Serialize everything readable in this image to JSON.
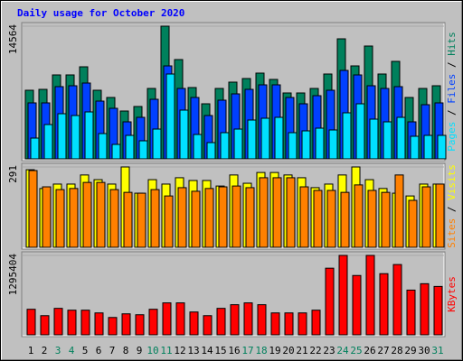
{
  "title": "Daily usage for October 2020",
  "legend_separator": "/",
  "chart_data": [
    {
      "type": "bar",
      "ylim": [
        0,
        14564
      ],
      "yticks": [
        14564
      ],
      "series": [
        {
          "name": "Hits",
          "color": "#00805c",
          "values": [
            7529,
            7628,
            9214,
            9214,
            10105,
            7529,
            6737,
            5251,
            5746,
            7727,
            14564,
            10898,
            7827,
            6043,
            7727,
            8421,
            8817,
            9412,
            8718,
            7232,
            7232,
            7727,
            9313,
            13176,
            10204,
            12384,
            9313,
            10700,
            6737,
            7727,
            8025
          ]
        },
        {
          "name": "Files",
          "color": "#0040ff",
          "values": [
            6142,
            6142,
            7926,
            8025,
            8322,
            6340,
            5548,
            4062,
            4557,
            6539,
            10204,
            7727,
            6737,
            4755,
            6440,
            7133,
            7628,
            8124,
            8124,
            6737,
            6043,
            6935,
            7529,
            9709,
            9213,
            8025,
            7727,
            7926,
            4062,
            5944,
            6142
          ]
        },
        {
          "name": "Pages",
          "color": "#00e0ff",
          "values": [
            2279,
            3765,
            4954,
            4755,
            5152,
            2774,
            1585,
            2576,
            1981,
            3269,
            9313,
            5350,
            2675,
            1783,
            2873,
            3269,
            4260,
            4458,
            4557,
            2873,
            3071,
            3368,
            3170,
            5053,
            6043,
            4359,
            4062,
            4557,
            2477,
            2576,
            2576
          ]
        }
      ]
    },
    {
      "type": "bar",
      "ylim": [
        0,
        291
      ],
      "yticks": [
        291
      ],
      "series": [
        {
          "name": "Visits",
          "color": "#ffff00",
          "values": [
            281,
            213,
            229,
            229,
            262,
            245,
            229,
            291,
            196,
            245,
            229,
            252,
            242,
            242,
            222,
            262,
            232,
            271,
            271,
            262,
            252,
            216,
            229,
            262,
            291,
            245,
            213,
            196,
            186,
            229,
            229
          ]
        },
        {
          "name": "Sites",
          "color": "#ff8000",
          "values": [
            278,
            219,
            209,
            213,
            235,
            235,
            209,
            199,
            196,
            209,
            186,
            216,
            203,
            213,
            219,
            222,
            216,
            252,
            252,
            252,
            219,
            206,
            206,
            199,
            226,
            206,
            199,
            262,
            170,
            219,
            229
          ]
        }
      ]
    },
    {
      "type": "bar",
      "ylim": [
        0,
        1295404
      ],
      "yticks": [
        1295404
      ],
      "categories": [
        "1",
        "2",
        "3",
        "4",
        "5",
        "6",
        "7",
        "8",
        "9",
        "10",
        "11",
        "12",
        "13",
        "14",
        "15",
        "16",
        "17",
        "18",
        "19",
        "20",
        "21",
        "22",
        "23",
        "24",
        "25",
        "26",
        "27",
        "28",
        "29",
        "30",
        "31"
      ],
      "category_colors": [
        "#000000",
        "#000000",
        "#00805c",
        "#00805c",
        "#000000",
        "#000000",
        "#000000",
        "#000000",
        "#000000",
        "#00805c",
        "#00805c",
        "#000000",
        "#000000",
        "#000000",
        "#000000",
        "#000000",
        "#00805c",
        "#00805c",
        "#000000",
        "#000000",
        "#000000",
        "#000000",
        "#000000",
        "#00805c",
        "#00805c",
        "#000000",
        "#000000",
        "#000000",
        "#000000",
        "#000000",
        "#00805c"
      ],
      "series": [
        {
          "name": "KBytes",
          "color": "#ff0000",
          "values": [
            416920,
            312690,
            431810,
            402030,
            402030,
            357360,
            282910,
            342470,
            327580,
            416920,
            521150,
            521150,
            372250,
            312690,
            431810,
            491370,
            521150,
            491370,
            357360,
            357360,
            357360,
            402030,
            1086970,
            1295404,
            967850,
            1295404,
            997630,
            1146530,
            729610,
            833840,
            789170
          ]
        }
      ]
    }
  ]
}
